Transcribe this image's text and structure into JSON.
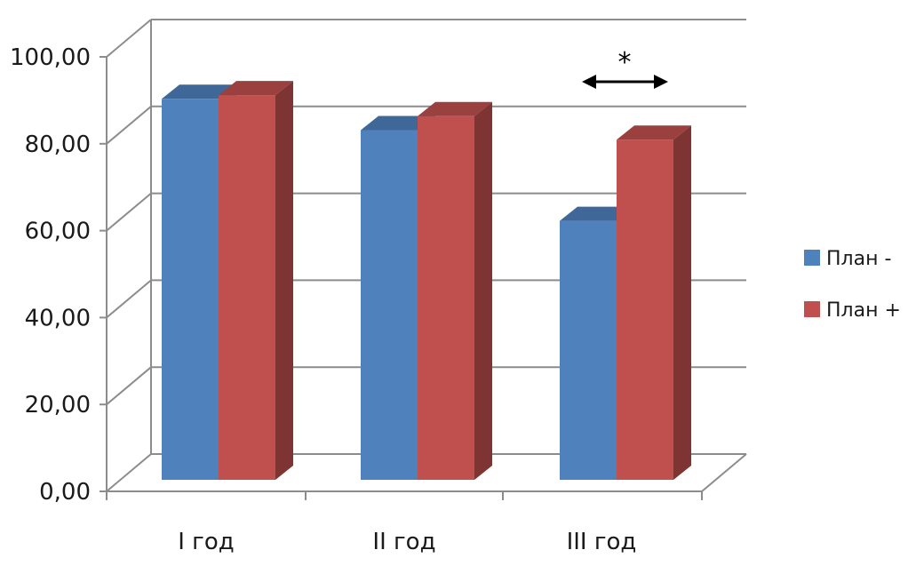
{
  "chart_data": {
    "type": "bar",
    "categories": [
      "I год",
      "II год",
      "III год"
    ],
    "series": [
      {
        "name": "План -",
        "values": [
          92.4,
          84.8,
          62.8
        ],
        "color": "#4F81BD"
      },
      {
        "name": "План +",
        "values": [
          93.3,
          88.2,
          82.5
        ],
        "color": "#C0504D"
      }
    ],
    "ylim": [
      0,
      100
    ],
    "yticks": [
      "0,00",
      "20,00",
      "40,00",
      "60,00",
      "80,00",
      "100,00"
    ],
    "grid": true,
    "style": "3d-clustered-column",
    "legend": "right",
    "annotations": [
      {
        "text": "*",
        "category": "III год",
        "type": "double-arrow"
      }
    ]
  }
}
